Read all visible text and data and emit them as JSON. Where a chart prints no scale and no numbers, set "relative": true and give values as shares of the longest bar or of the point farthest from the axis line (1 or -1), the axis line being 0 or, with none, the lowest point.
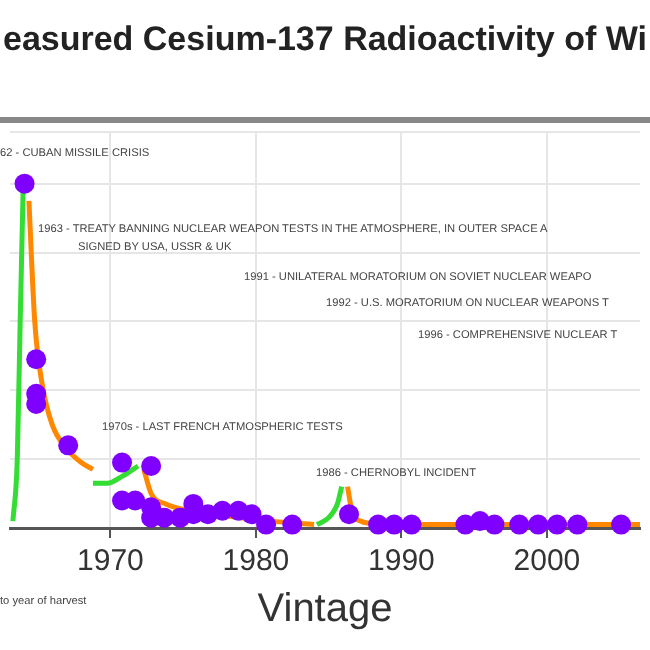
{
  "chart_data": {
    "type": "scatter",
    "title": "easured Cesium-137 Radioactivity of Wi",
    "xlabel": "Vintage",
    "relative": true,
    "xlim": [
      1963.1,
      2006.4
    ],
    "xticks": [
      1970,
      1980,
      1990,
      2000
    ],
    "grid": true,
    "legend": false,
    "annotations": [
      "62 - CUBAN MISSILE CRISIS",
      "1963 - TREATY BANNING NUCLEAR WEAPON TESTS IN THE ATMOSPHERE, IN OUTER SPACE A",
      "SIGNED BY USA, USSR & UK",
      "1991 - UNILATERAL MORATORIUM ON SOVIET NUCLEAR WEAPO",
      "1992 - U.S. MORATORIUM ON NUCLEAR WEAPONS T",
      "1996 - COMPREHENSIVE NUCLEAR T",
      "1970s - LAST FRENCH ATMOSPHERIC TESTS",
      "1986 - CHERNOBYL INCIDENT",
      "to year of harvest"
    ],
    "series": [
      {
        "type": "line",
        "color": "#33dd33",
        "x": [
          1963.3,
          1963.6,
          1963.8,
          1964.0
        ],
        "values": [
          0.02,
          0.2,
          0.6,
          0.98
        ]
      },
      {
        "type": "line",
        "color": "#ff8800",
        "x": [
          1964.4,
          1964.8,
          1965.3,
          1966.0,
          1967.0,
          1968.0,
          1968.8
        ],
        "values": [
          0.95,
          0.6,
          0.42,
          0.3,
          0.23,
          0.19,
          0.17
        ]
      },
      {
        "type": "line",
        "color": "#33dd33",
        "x": [
          1968.8,
          1969.8,
          1970.8,
          1971.9
        ],
        "values": [
          0.13,
          0.13,
          0.15,
          0.18
        ]
      },
      {
        "type": "line",
        "color": "#ff8800",
        "x": [
          1972.3,
          1972.8,
          1973.8,
          1975.5,
          1978.0,
          1981.0,
          1984.0
        ],
        "values": [
          0.17,
          0.1,
          0.07,
          0.05,
          0.035,
          0.02,
          0.01
        ]
      },
      {
        "type": "line",
        "color": "#33dd33",
        "x": [
          1984.2,
          1985.0,
          1985.6,
          1985.9
        ],
        "values": [
          0.01,
          0.03,
          0.07,
          0.12
        ]
      },
      {
        "type": "line",
        "color": "#ff8800",
        "x": [
          1986.3,
          1986.6,
          1987.2,
          1988.5,
          1992.0,
          2000.0,
          2006.4
        ],
        "values": [
          0.12,
          0.05,
          0.02,
          0.012,
          0.01,
          0.01,
          0.01
        ]
      },
      {
        "marker": "circle",
        "color": "#7f00ff",
        "x": [
          1964.1,
          1964.9,
          1964.9,
          1964.9,
          1967.1,
          1970.8,
          1970.8,
          1971.7,
          1972.8,
          1972.8,
          1972.8,
          1973.7,
          1974.8,
          1975.7,
          1975.7,
          1976.7,
          1977.7,
          1978.8,
          1979.7,
          1980.7,
          1982.5,
          1986.4,
          1988.4,
          1989.5,
          1990.7,
          1994.4,
          1995.4,
          1996.4,
          1998.1,
          1999.4,
          2000.7,
          2002.1,
          2005.1
        ],
        "values": [
          1.0,
          0.49,
          0.39,
          0.36,
          0.24,
          0.19,
          0.08,
          0.08,
          0.18,
          0.06,
          0.03,
          0.03,
          0.03,
          0.07,
          0.04,
          0.04,
          0.05,
          0.05,
          0.04,
          0.01,
          0.01,
          0.04,
          0.01,
          0.01,
          0.01,
          0.01,
          0.02,
          0.01,
          0.01,
          0.01,
          0.01,
          0.01,
          0.01
        ]
      }
    ]
  }
}
